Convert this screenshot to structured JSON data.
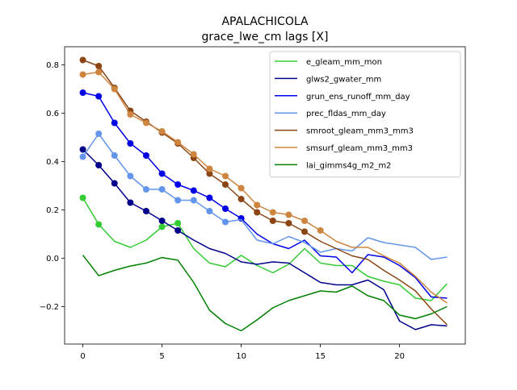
{
  "chart_data": {
    "type": "line",
    "title": "APALACHICOLA",
    "subtitle": "grace_lwe_cm lags [X]",
    "xlabel": "",
    "ylabel": "",
    "xlim": [
      -1.15,
      24.15
    ],
    "ylim": [
      -0.355,
      0.875
    ],
    "xticks": [
      0,
      5,
      10,
      15,
      20
    ],
    "yticks": [
      -0.2,
      0.0,
      0.2,
      0.4,
      0.6,
      0.8
    ],
    "ytick_labels": [
      "−0.2",
      "0.0",
      "0.2",
      "0.4",
      "0.6",
      "0.8"
    ],
    "grid": false,
    "legend_position": "top-right",
    "x": [
      0,
      1,
      2,
      3,
      4,
      5,
      6,
      7,
      8,
      9,
      10,
      11,
      12,
      13,
      14,
      15,
      16,
      17,
      18,
      19,
      20,
      21,
      22,
      23
    ],
    "series": [
      {
        "name": "e_gleam_mm_mon",
        "color": "#33cc33",
        "values": [
          0.25,
          0.14,
          0.07,
          0.045,
          0.075,
          0.13,
          0.145,
          0.04,
          -0.02,
          -0.035,
          0.012,
          -0.03,
          -0.06,
          -0.025,
          0.04,
          -0.02,
          -0.03,
          -0.03,
          -0.075,
          -0.095,
          -0.11,
          -0.165,
          -0.175,
          -0.105
        ],
        "markers": [
          0,
          1,
          5,
          6
        ]
      },
      {
        "name": "glws2_gwater_mm",
        "color": "#00008b",
        "values": [
          0.45,
          0.385,
          0.31,
          0.23,
          0.195,
          0.155,
          0.115,
          0.075,
          0.04,
          0.02,
          -0.015,
          -0.025,
          -0.015,
          -0.02,
          -0.06,
          -0.1,
          -0.11,
          -0.11,
          -0.09,
          -0.13,
          -0.26,
          -0.295,
          -0.275,
          -0.28
        ],
        "markers": [
          0,
          1,
          2,
          3,
          4,
          5,
          6
        ]
      },
      {
        "name": "grun_ens_runoff_mm_day",
        "color": "#0000e6",
        "values": [
          0.685,
          0.67,
          0.56,
          0.475,
          0.425,
          0.35,
          0.305,
          0.28,
          0.25,
          0.205,
          0.165,
          0.1,
          0.06,
          0.04,
          0.075,
          0.01,
          0.005,
          -0.06,
          0.015,
          0.005,
          -0.03,
          -0.08,
          -0.16,
          -0.165
        ],
        "markers": [
          0,
          1,
          2,
          3,
          4,
          5,
          6,
          7,
          8,
          9,
          10
        ]
      },
      {
        "name": "prec_fldas_mm_day",
        "color": "#6495ed",
        "values": [
          0.42,
          0.515,
          0.425,
          0.34,
          0.285,
          0.285,
          0.24,
          0.24,
          0.195,
          0.15,
          0.16,
          0.075,
          0.06,
          0.09,
          0.065,
          0.025,
          0.04,
          0.03,
          0.085,
          0.065,
          0.055,
          0.045,
          -0.005,
          0.005
        ],
        "markers": [
          0,
          1,
          2,
          3,
          4,
          5,
          6,
          7,
          8,
          9
        ]
      },
      {
        "name": "smroot_gleam_mm3_mm3",
        "color": "#8b4513",
        "values": [
          0.82,
          0.795,
          0.705,
          0.61,
          0.565,
          0.52,
          0.475,
          0.415,
          0.35,
          0.305,
          0.245,
          0.19,
          0.155,
          0.145,
          0.11,
          0.07,
          0.04,
          0.01,
          -0.005,
          -0.05,
          -0.09,
          -0.135,
          -0.21,
          -0.275
        ],
        "markers": [
          0,
          1,
          2,
          3,
          4,
          5,
          6,
          7,
          8,
          9,
          10,
          11,
          12,
          13,
          14
        ]
      },
      {
        "name": "smsurf_gleam_mm3_mm3",
        "color": "#cd853f",
        "values": [
          0.76,
          0.77,
          0.7,
          0.595,
          0.56,
          0.525,
          0.48,
          0.43,
          0.37,
          0.34,
          0.29,
          0.22,
          0.19,
          0.18,
          0.155,
          0.115,
          0.07,
          0.045,
          0.045,
          0.01,
          -0.02,
          -0.075,
          -0.14,
          -0.185
        ],
        "markers": [
          0,
          1,
          2,
          3,
          4,
          5,
          6,
          7,
          8,
          9,
          10,
          11,
          12,
          13,
          14,
          15
        ]
      },
      {
        "name": "lai_gimms4g_m2_m2",
        "color": "#008000",
        "values": [
          0.013,
          -0.072,
          -0.05,
          -0.032,
          -0.02,
          0.003,
          -0.008,
          -0.1,
          -0.215,
          -0.27,
          -0.3,
          -0.255,
          -0.205,
          -0.175,
          -0.155,
          -0.135,
          -0.14,
          -0.115,
          -0.155,
          -0.175,
          -0.235,
          -0.25,
          -0.23,
          -0.2
        ],
        "markers": []
      }
    ]
  }
}
